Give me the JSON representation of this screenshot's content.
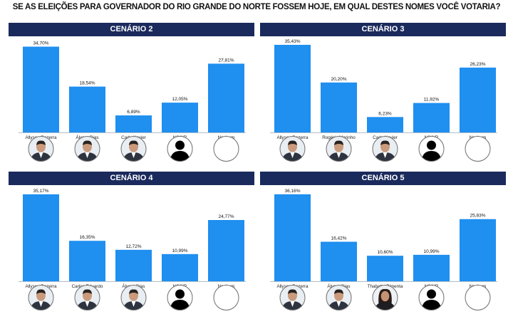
{
  "title": "SE AS ELEIÇÕES PARA GOVERNADOR DO RIO GRANDE DO NORTE FOSSEM HOJE, EM QUAL DESTES NOMES VOCÊ VOTARIA?",
  "colors": {
    "bar": "#1f8ff0",
    "header": "#1b2a5c",
    "baseline": "#9aa7b8"
  },
  "chart_data": [
    {
      "type": "bar",
      "title": "CENÁRIO 2",
      "categories": [
        "Allyson Bezerra",
        "Álvaro Dias",
        "Cadu Xavier",
        "NS/NR",
        "Nenhum"
      ],
      "values": [
        34.7,
        18.54,
        6.89,
        12.05,
        27.81
      ],
      "value_labels": [
        "34,70%",
        "18,54%",
        "6,89%",
        "12,05%",
        "27,81%"
      ],
      "photos": [
        "man-photo-icon",
        "man-photo-icon",
        "man-photo-icon",
        "silhouette-icon",
        "empty-circle-icon"
      ],
      "ylim": [
        0,
        36
      ]
    },
    {
      "type": "bar",
      "title": "CENÁRIO 3",
      "categories": [
        "Allyson Bezerra",
        "Rogério Marinho",
        "Cadu Xavier",
        "NS/NR",
        "Nenhum"
      ],
      "values": [
        35.43,
        20.2,
        6.23,
        11.92,
        26.23
      ],
      "value_labels": [
        "35,43%",
        "20,20%",
        "6,23%",
        "11,92%",
        "26,23%"
      ],
      "photos": [
        "man-photo-icon",
        "man-photo-icon",
        "man-photo-icon",
        "silhouette-icon",
        "empty-circle-icon"
      ],
      "ylim": [
        0,
        36
      ]
    },
    {
      "type": "bar",
      "title": "CENÁRIO 4",
      "categories": [
        "Allyson Bezerra",
        "Carlos Eduardo",
        "Álvaro Dias",
        "NS/NR",
        "Nenhum"
      ],
      "values": [
        35.17,
        16.35,
        12.72,
        10.99,
        24.77
      ],
      "value_labels": [
        "35,17%",
        "16,35%",
        "12,72%",
        "10,99%",
        "24,77%"
      ],
      "photos": [
        "man-photo-icon",
        "man-photo-icon",
        "man-photo-icon",
        "silhouette-icon",
        "empty-circle-icon"
      ],
      "ylim": [
        0,
        36
      ]
    },
    {
      "type": "bar",
      "title": "CENÁRIO 5",
      "categories": [
        "Allyson Bezerra",
        "Álvaro Dias",
        "Thabatta Pimenta",
        "NS/NR",
        "Nenhum"
      ],
      "values": [
        36.16,
        16.42,
        10.6,
        10.99,
        25.83
      ],
      "value_labels": [
        "36,16%",
        "16,42%",
        "10,60%",
        "10,99%",
        "25,83%"
      ],
      "photos": [
        "man-photo-icon",
        "man-photo-icon",
        "woman-photo-icon",
        "silhouette-icon",
        "empty-circle-icon"
      ],
      "ylim": [
        0,
        37
      ]
    }
  ]
}
